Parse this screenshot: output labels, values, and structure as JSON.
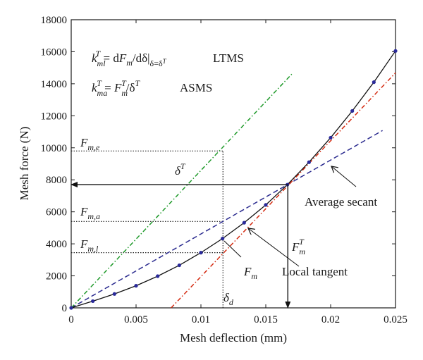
{
  "chart_data": {
    "type": "line",
    "xlabel": "Mesh deflection (mm)",
    "ylabel": "Mesh force (N)",
    "xlim": [
      0,
      0.025
    ],
    "ylim": [
      0,
      18000
    ],
    "x_ticks": [
      0,
      0.005,
      0.01,
      0.015,
      0.02,
      0.025
    ],
    "x_tick_labels": [
      "0",
      "0.005",
      "0.01",
      "0.015",
      "0.02",
      "0.025"
    ],
    "y_ticks": [
      0,
      2000,
      4000,
      6000,
      8000,
      10000,
      12000,
      14000,
      16000,
      18000
    ],
    "y_tick_labels": [
      "0",
      "2000",
      "4000",
      "6000",
      "8000",
      "10000",
      "12000",
      "14000",
      "16000",
      "18000"
    ],
    "grid": false,
    "series": [
      {
        "name": "F_m",
        "style": "solid-with-markers",
        "color": "#111111",
        "marker_color": "#2a2a9a",
        "x": [
          0,
          0.001667,
          0.003333,
          0.005,
          0.006667,
          0.008333,
          0.01,
          0.011667,
          0.013333,
          0.015,
          0.016667,
          0.018333,
          0.02,
          0.021667,
          0.023333,
          0.025
        ],
        "y": [
          0,
          420,
          870,
          1380,
          1980,
          2660,
          3450,
          4330,
          5320,
          6430,
          7700,
          9100,
          10630,
          12300,
          14100,
          16050
        ]
      },
      {
        "name": "Average secant",
        "style": "dashed",
        "color": "#2b2b8f",
        "x": [
          0,
          0.024
        ],
        "y": [
          0,
          11080
        ]
      },
      {
        "name": "Local tangent",
        "style": "dash-dot",
        "color": "#d42a10",
        "x": [
          0.0077,
          0.025
        ],
        "y": [
          0,
          14680
        ]
      },
      {
        "name": "",
        "style": "dash-dot",
        "color": "#1f9a2a",
        "x": [
          0,
          0.017
        ],
        "y": [
          0,
          14600
        ]
      }
    ],
    "reference_lines": [
      {
        "x": [
          0,
          0.0117
        ],
        "y": [
          9800,
          9800
        ]
      },
      {
        "x": [
          0,
          0.0117
        ],
        "y": [
          5400,
          5400
        ]
      },
      {
        "x": [
          0,
          0.0117
        ],
        "y": [
          3450,
          3450
        ]
      },
      {
        "x": [
          0.0117,
          0.0117
        ],
        "y": [
          0,
          9800
        ]
      }
    ],
    "arrows": [
      {
        "x": [
          0.0167,
          0
        ],
        "y": [
          7700,
          7700
        ]
      },
      {
        "x": [
          0.0167,
          0.0167
        ],
        "y": [
          7700,
          0
        ]
      }
    ],
    "annotations": {
      "formula_ltms": "k_ml^T = dF_m/dδ|_{δ=δ^T}",
      "ltms": "LTMS",
      "formula_asms": "k_ma^T = F_m^T/δ^T",
      "asms": "ASMS",
      "f_me": "F_m,e",
      "f_ma": "F_m,a",
      "f_ml": "F_m,l",
      "delta_t": "δ^T",
      "average_secant": "Average secant",
      "local_tangent": "Local tangent",
      "f_m": "F_m",
      "f_m_t": "F_m^T",
      "delta_d": "δ_d"
    }
  },
  "text": {
    "F": "F",
    "k": "k",
    "d": "d",
    "m": "m",
    "ml": "ml",
    "ma": "ma",
    "T": "T",
    "delta": "δ",
    "eq": " = ",
    "slash": "/",
    "m_e": "m,e",
    "m_a": "m,a",
    "m_l": "m,l",
    "sub_cond": "δ=δ",
    "sub_d": "d",
    "ltms": "LTMS",
    "asms": "ASMS",
    "average_secant": "Average secant",
    "local_tangent": "Local tangent"
  }
}
